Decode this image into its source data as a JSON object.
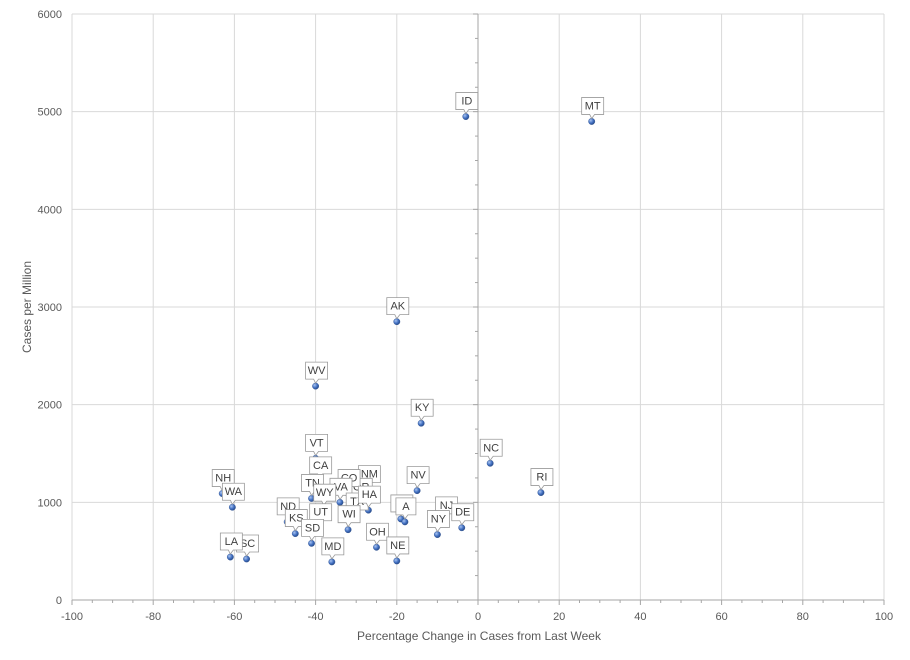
{
  "chart_data": {
    "type": "scatter",
    "title": "",
    "xlabel": "Percentage Change  in Cases from Last Week",
    "ylabel": "Cases per Million",
    "xlim": [
      -100,
      100
    ],
    "ylim": [
      0,
      6000
    ],
    "x_ticks": [
      -100,
      -80,
      -60,
      -40,
      -20,
      0,
      20,
      40,
      60,
      80,
      100
    ],
    "y_ticks": [
      0,
      1000,
      2000,
      3000,
      4000,
      5000,
      6000
    ],
    "grid": true,
    "legend": "none",
    "marker_color": "#4472c4",
    "points": [
      {
        "label": "ID",
        "x": -3,
        "y": 4950
      },
      {
        "label": "MT",
        "x": 28,
        "y": 4900
      },
      {
        "label": "AK",
        "x": -20,
        "y": 2850
      },
      {
        "label": "WV",
        "x": -40,
        "y": 2190
      },
      {
        "label": "KY",
        "x": -14,
        "y": 1810
      },
      {
        "label": "VT",
        "x": -40,
        "y": 1450
      },
      {
        "label": "NC",
        "x": 3,
        "y": 1400
      },
      {
        "label": "RI",
        "x": 15.5,
        "y": 1100
      },
      {
        "label": "NH",
        "x": -63,
        "y": 1090
      },
      {
        "label": "WA",
        "x": -60.5,
        "y": 950
      },
      {
        "label": "NV",
        "x": -15,
        "y": 1120
      },
      {
        "label": "CA",
        "x": -39,
        "y": 1220
      },
      {
        "label": "NM",
        "x": -27,
        "y": 1130
      },
      {
        "label": "OR",
        "x": -29,
        "y": 1000
      },
      {
        "label": "CO",
        "x": -32,
        "y": 1090
      },
      {
        "label": "TN",
        "x": -41,
        "y": 1040
      },
      {
        "label": "VA",
        "x": -34,
        "y": 1000
      },
      {
        "label": "WY",
        "x": -38,
        "y": 940
      },
      {
        "label": "TX",
        "x": -30,
        "y": 850
      },
      {
        "label": "HA",
        "x": -27,
        "y": 920
      },
      {
        "label": "IL",
        "x": -19,
        "y": 830
      },
      {
        "label": "A",
        "x": -18,
        "y": 800
      },
      {
        "label": "NJ",
        "x": -8,
        "y": 810
      },
      {
        "label": "DE",
        "x": -4,
        "y": 740
      },
      {
        "label": "NY",
        "x": -10,
        "y": 670
      },
      {
        "label": "ND",
        "x": -47,
        "y": 800
      },
      {
        "label": "UT",
        "x": -39,
        "y": 740
      },
      {
        "label": "WI",
        "x": -32,
        "y": 720
      },
      {
        "label": "KS",
        "x": -45,
        "y": 680
      },
      {
        "label": "SD",
        "x": -41,
        "y": 580
      },
      {
        "label": "OH",
        "x": -25,
        "y": 540
      },
      {
        "label": "MD",
        "x": -36,
        "y": 390
      },
      {
        "label": "NE",
        "x": -20,
        "y": 400
      },
      {
        "label": "SC",
        "x": -57,
        "y": 420
      },
      {
        "label": "LA",
        "x": -61,
        "y": 440
      }
    ]
  }
}
